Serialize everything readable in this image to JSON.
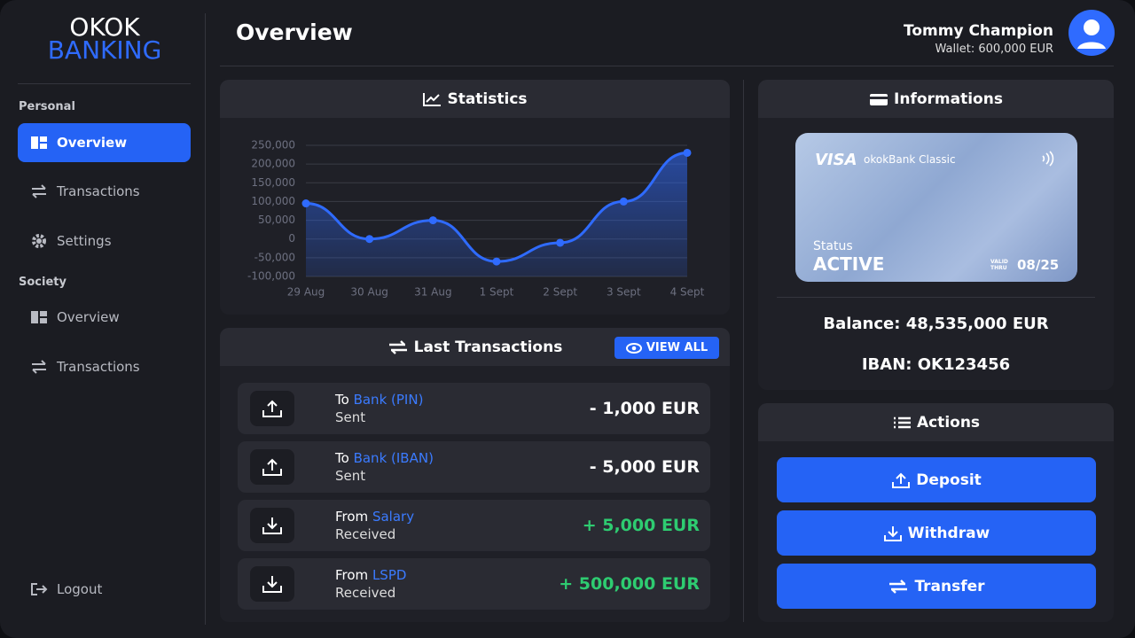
{
  "brand": {
    "line1": "OKOK",
    "line2": "BANKING"
  },
  "sidebar": {
    "sections": [
      {
        "label": "Personal",
        "items": [
          "Overview",
          "Transactions",
          "Settings"
        ]
      },
      {
        "label": "Society",
        "items": [
          "Overview",
          "Transactions"
        ]
      }
    ],
    "logout": "Logout"
  },
  "header": {
    "title": "Overview",
    "user_name": "Tommy Champion",
    "wallet": "Wallet: 600,000 EUR"
  },
  "statistics": {
    "title": "Statistics",
    "chart": {
      "type": "line",
      "categories": [
        "29 Aug",
        "30 Aug",
        "31 Aug",
        "1 Sept",
        "2 Sept",
        "3 Sept",
        "4 Sept"
      ],
      "values": [
        95000,
        0,
        50000,
        -60000,
        -10000,
        100000,
        230000
      ],
      "color": "#2f6bff",
      "ylim": [
        -100000,
        250000
      ],
      "yticks": [
        {
          "value": -100000,
          "label": "-100,000"
        },
        {
          "value": -50000,
          "label": "-50,000"
        },
        0,
        {
          "value": 50000,
          "label": "50,000"
        },
        {
          "value": 100000,
          "label": "100,000"
        },
        {
          "value": 150000,
          "label": "150,000"
        },
        {
          "value": 200000,
          "label": "200,000"
        },
        {
          "value": 250000,
          "label": "250,000"
        }
      ],
      "grid": true
    }
  },
  "transactions": {
    "title": "Last Transactions",
    "view_all": "VIEW ALL",
    "items": [
      {
        "direction": "To",
        "target": "Bank (PIN)",
        "status": "Sent",
        "amount": "- 1,000 EUR"
      },
      {
        "direction": "To",
        "target": "Bank (IBAN)",
        "status": "Sent",
        "amount": "- 5,000 EUR"
      },
      {
        "direction": "From",
        "target": "Salary",
        "status": "Received",
        "amount": "+ 5,000 EUR"
      },
      {
        "direction": "From",
        "target": "LSPD",
        "status": "Received",
        "amount": "+ 500,000 EUR"
      }
    ]
  },
  "informations": {
    "title": "Informations",
    "card": {
      "brand": "VISA",
      "product": "okokBank Classic",
      "status_label": "Status",
      "status": "ACTIVE",
      "valid_1": "VALID",
      "valid_2": "THRU",
      "expiry": "08/25"
    },
    "balance": "Balance: 48,535,000 EUR",
    "iban": "IBAN: OK123456"
  },
  "actions": {
    "title": "Actions",
    "buttons": [
      "Deposit",
      "Withdraw",
      "Transfer"
    ]
  }
}
